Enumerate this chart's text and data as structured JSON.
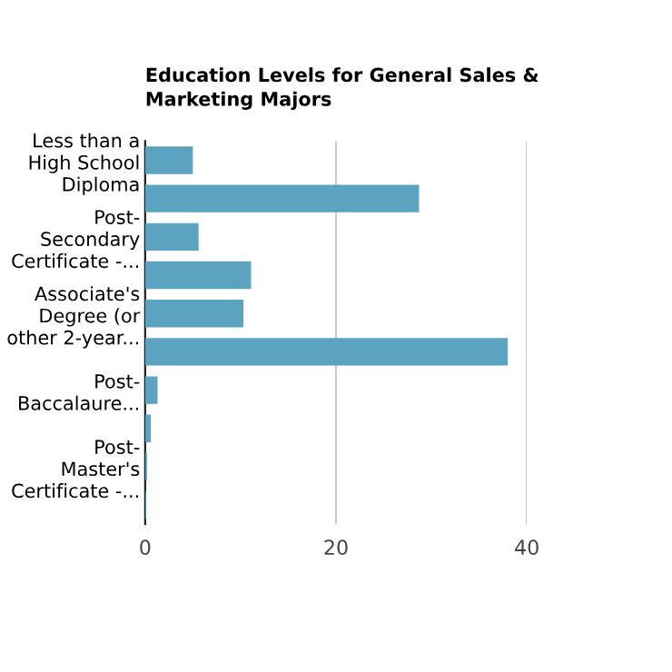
{
  "chart_data": {
    "type": "bar",
    "orientation": "horizontal",
    "title": "Education Levels for General Sales &\nMarketing Majors",
    "categories": [
      "Less than a\nHigh School\nDiploma",
      null,
      "Post-\nSecondary\nCertificate -...",
      null,
      "Associate's\nDegree (or\nother 2-year...",
      null,
      "Post-\nBaccalaure...",
      null,
      "Post-\nMaster's\nCertificate -...",
      null
    ],
    "values": [
      5.0,
      28.7,
      5.6,
      11.1,
      10.3,
      38.0,
      1.3,
      0.6,
      0.2,
      0.1
    ],
    "color": "#5ba3c0",
    "xlim": [
      0,
      40
    ],
    "xticks": [
      0,
      20,
      40
    ],
    "grid": "x",
    "legend": false
  }
}
